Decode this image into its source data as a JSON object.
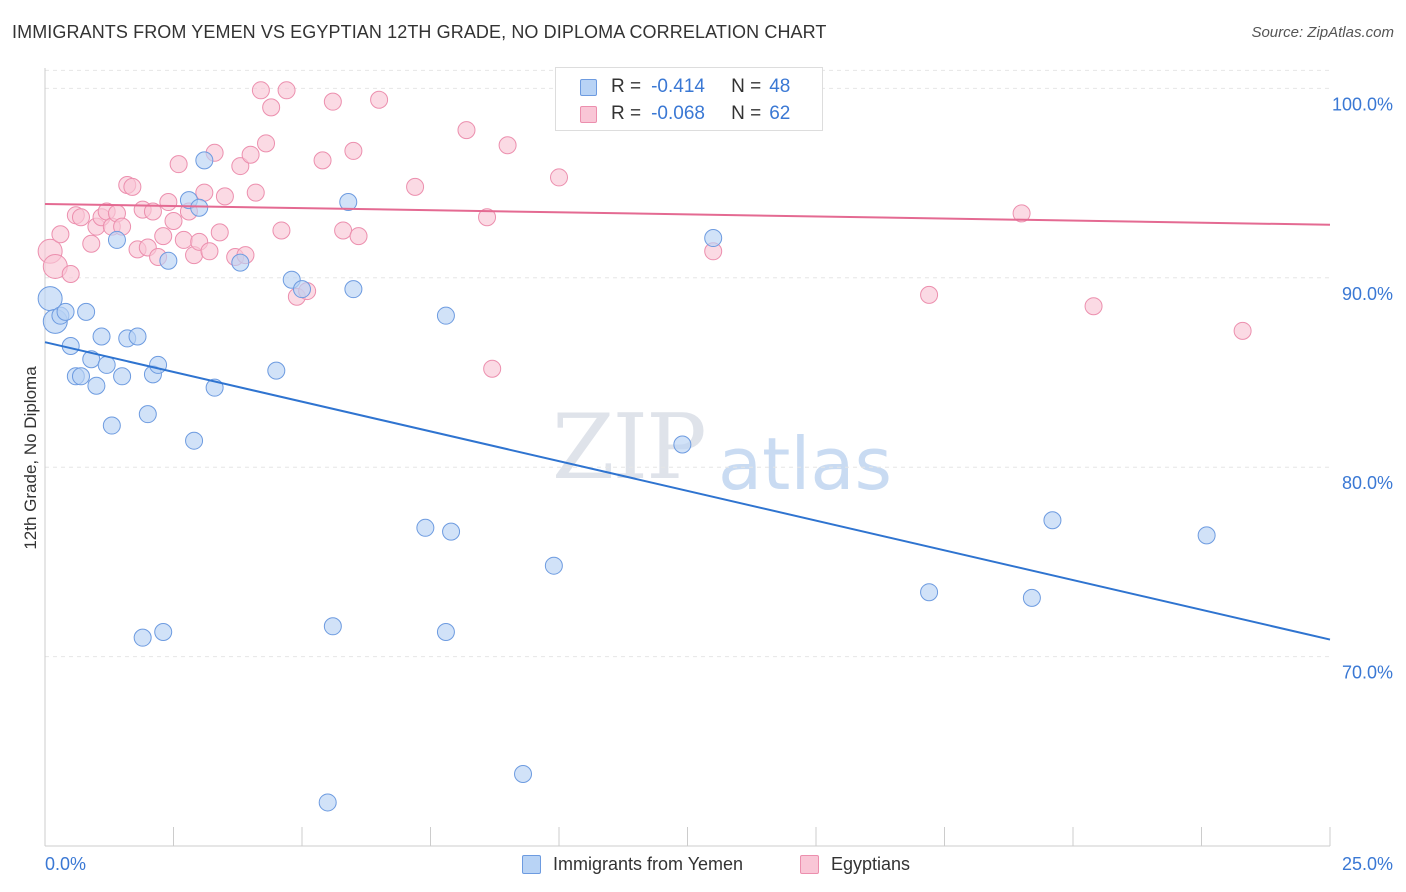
{
  "title": "IMMIGRANTS FROM YEMEN VS EGYPTIAN 12TH GRADE, NO DIPLOMA CORRELATION CHART",
  "source": "Source: ZipAtlas.com",
  "watermark": {
    "zip": "ZIP",
    "atlas": "atlas"
  },
  "legend": {
    "r_label": "R =",
    "n_label": "N =",
    "yemen": {
      "r": "-0.414",
      "n": "48"
    },
    "egypt": {
      "r": "-0.068",
      "n": "62"
    }
  },
  "colors": {
    "yemen_fill": "#b8d3f5",
    "yemen_stroke": "#6d9be0",
    "yemen_line": "#2f74d0",
    "egypt_fill": "#f9c6d6",
    "egypt_stroke": "#ec8fae",
    "egypt_line": "#e46a92",
    "axis_text": "#3a78d4",
    "grid": "#e6e6e6"
  },
  "chart_data": {
    "type": "scatter",
    "title": "IMMIGRANTS FROM YEMEN VS EGYPTIAN 12TH GRADE, NO DIPLOMA CORRELATION CHART",
    "xlabel": "",
    "ylabel": "12th Grade, No Diploma",
    "xlim": [
      0,
      25
    ],
    "ylim": [
      60,
      101.5
    ],
    "x_tick_labels": [
      "0.0%",
      "25.0%"
    ],
    "y_ticks": [
      70,
      80,
      90,
      100
    ],
    "y_tick_labels": [
      "70.0%",
      "80.0%",
      "90.0%",
      "100.0%"
    ],
    "grid": true,
    "legend_position": "top-center",
    "series": [
      {
        "name": "Immigrants from Yemen",
        "r": -0.414,
        "n": 48,
        "trend": {
          "x": [
            0,
            25
          ],
          "y": [
            86.6,
            70.9
          ]
        },
        "x": [
          0.1,
          0.2,
          0.3,
          0.4,
          0.5,
          0.6,
          0.7,
          0.8,
          0.9,
          1.0,
          1.1,
          1.2,
          1.3,
          1.4,
          1.5,
          1.6,
          1.8,
          1.9,
          2.0,
          2.1,
          2.2,
          2.3,
          2.4,
          2.8,
          2.9,
          3.0,
          3.1,
          3.3,
          3.8,
          4.5,
          4.8,
          5.0,
          5.5,
          5.6,
          5.9,
          6.0,
          7.4,
          7.8,
          7.8,
          7.9,
          9.3,
          9.9,
          12.4,
          13.0,
          17.2,
          19.2,
          19.6,
          22.6
        ],
        "y": [
          88.9,
          87.7,
          88.0,
          88.2,
          86.4,
          84.8,
          84.8,
          88.2,
          85.7,
          84.3,
          86.9,
          85.4,
          82.2,
          92.0,
          84.8,
          86.8,
          86.9,
          71.0,
          82.8,
          84.9,
          85.4,
          71.3,
          90.9,
          94.1,
          81.4,
          93.7,
          96.2,
          84.2,
          90.8,
          85.1,
          89.9,
          89.4,
          62.3,
          71.6,
          94.0,
          89.4,
          76.8,
          71.3,
          88.0,
          76.6,
          63.8,
          74.8,
          81.2,
          92.1,
          73.4,
          73.1,
          77.2,
          76.4
        ]
      },
      {
        "name": "Egyptians",
        "r": -0.068,
        "n": 62,
        "trend": {
          "x": [
            0,
            25
          ],
          "y": [
            93.9,
            92.8
          ]
        },
        "x": [
          0.1,
          0.2,
          0.3,
          0.5,
          0.6,
          0.7,
          0.9,
          1.0,
          1.1,
          1.2,
          1.3,
          1.4,
          1.5,
          1.6,
          1.7,
          1.8,
          1.9,
          2.0,
          2.1,
          2.2,
          2.3,
          2.4,
          2.5,
          2.6,
          2.7,
          2.8,
          2.9,
          3.0,
          3.1,
          3.2,
          3.3,
          3.4,
          3.5,
          3.7,
          3.8,
          3.9,
          4.0,
          4.1,
          4.2,
          4.3,
          4.4,
          4.6,
          4.7,
          4.9,
          5.1,
          5.4,
          5.6,
          5.8,
          6.0,
          6.1,
          6.5,
          7.2,
          8.2,
          8.6,
          8.7,
          9.0,
          10.0,
          13.0,
          17.2,
          19.0,
          20.4,
          23.3
        ],
        "y": [
          91.4,
          90.6,
          92.3,
          90.2,
          93.3,
          93.2,
          91.8,
          92.7,
          93.2,
          93.5,
          92.7,
          93.4,
          92.7,
          94.9,
          94.8,
          91.5,
          93.6,
          91.6,
          93.5,
          91.1,
          92.2,
          94.0,
          93.0,
          96.0,
          92.0,
          93.5,
          91.2,
          91.9,
          94.5,
          91.4,
          96.6,
          92.4,
          94.3,
          91.1,
          95.9,
          91.2,
          96.5,
          94.5,
          99.9,
          97.1,
          99.0,
          92.5,
          99.9,
          89.0,
          89.3,
          96.2,
          99.3,
          92.5,
          96.7,
          92.2,
          99.4,
          94.8,
          97.8,
          93.2,
          85.2,
          97.0,
          95.3,
          91.4,
          89.1,
          93.4,
          88.5,
          87.2
        ]
      }
    ]
  },
  "bottom_legend": {
    "yemen": "Immigrants from Yemen",
    "egypt": "Egyptians"
  }
}
